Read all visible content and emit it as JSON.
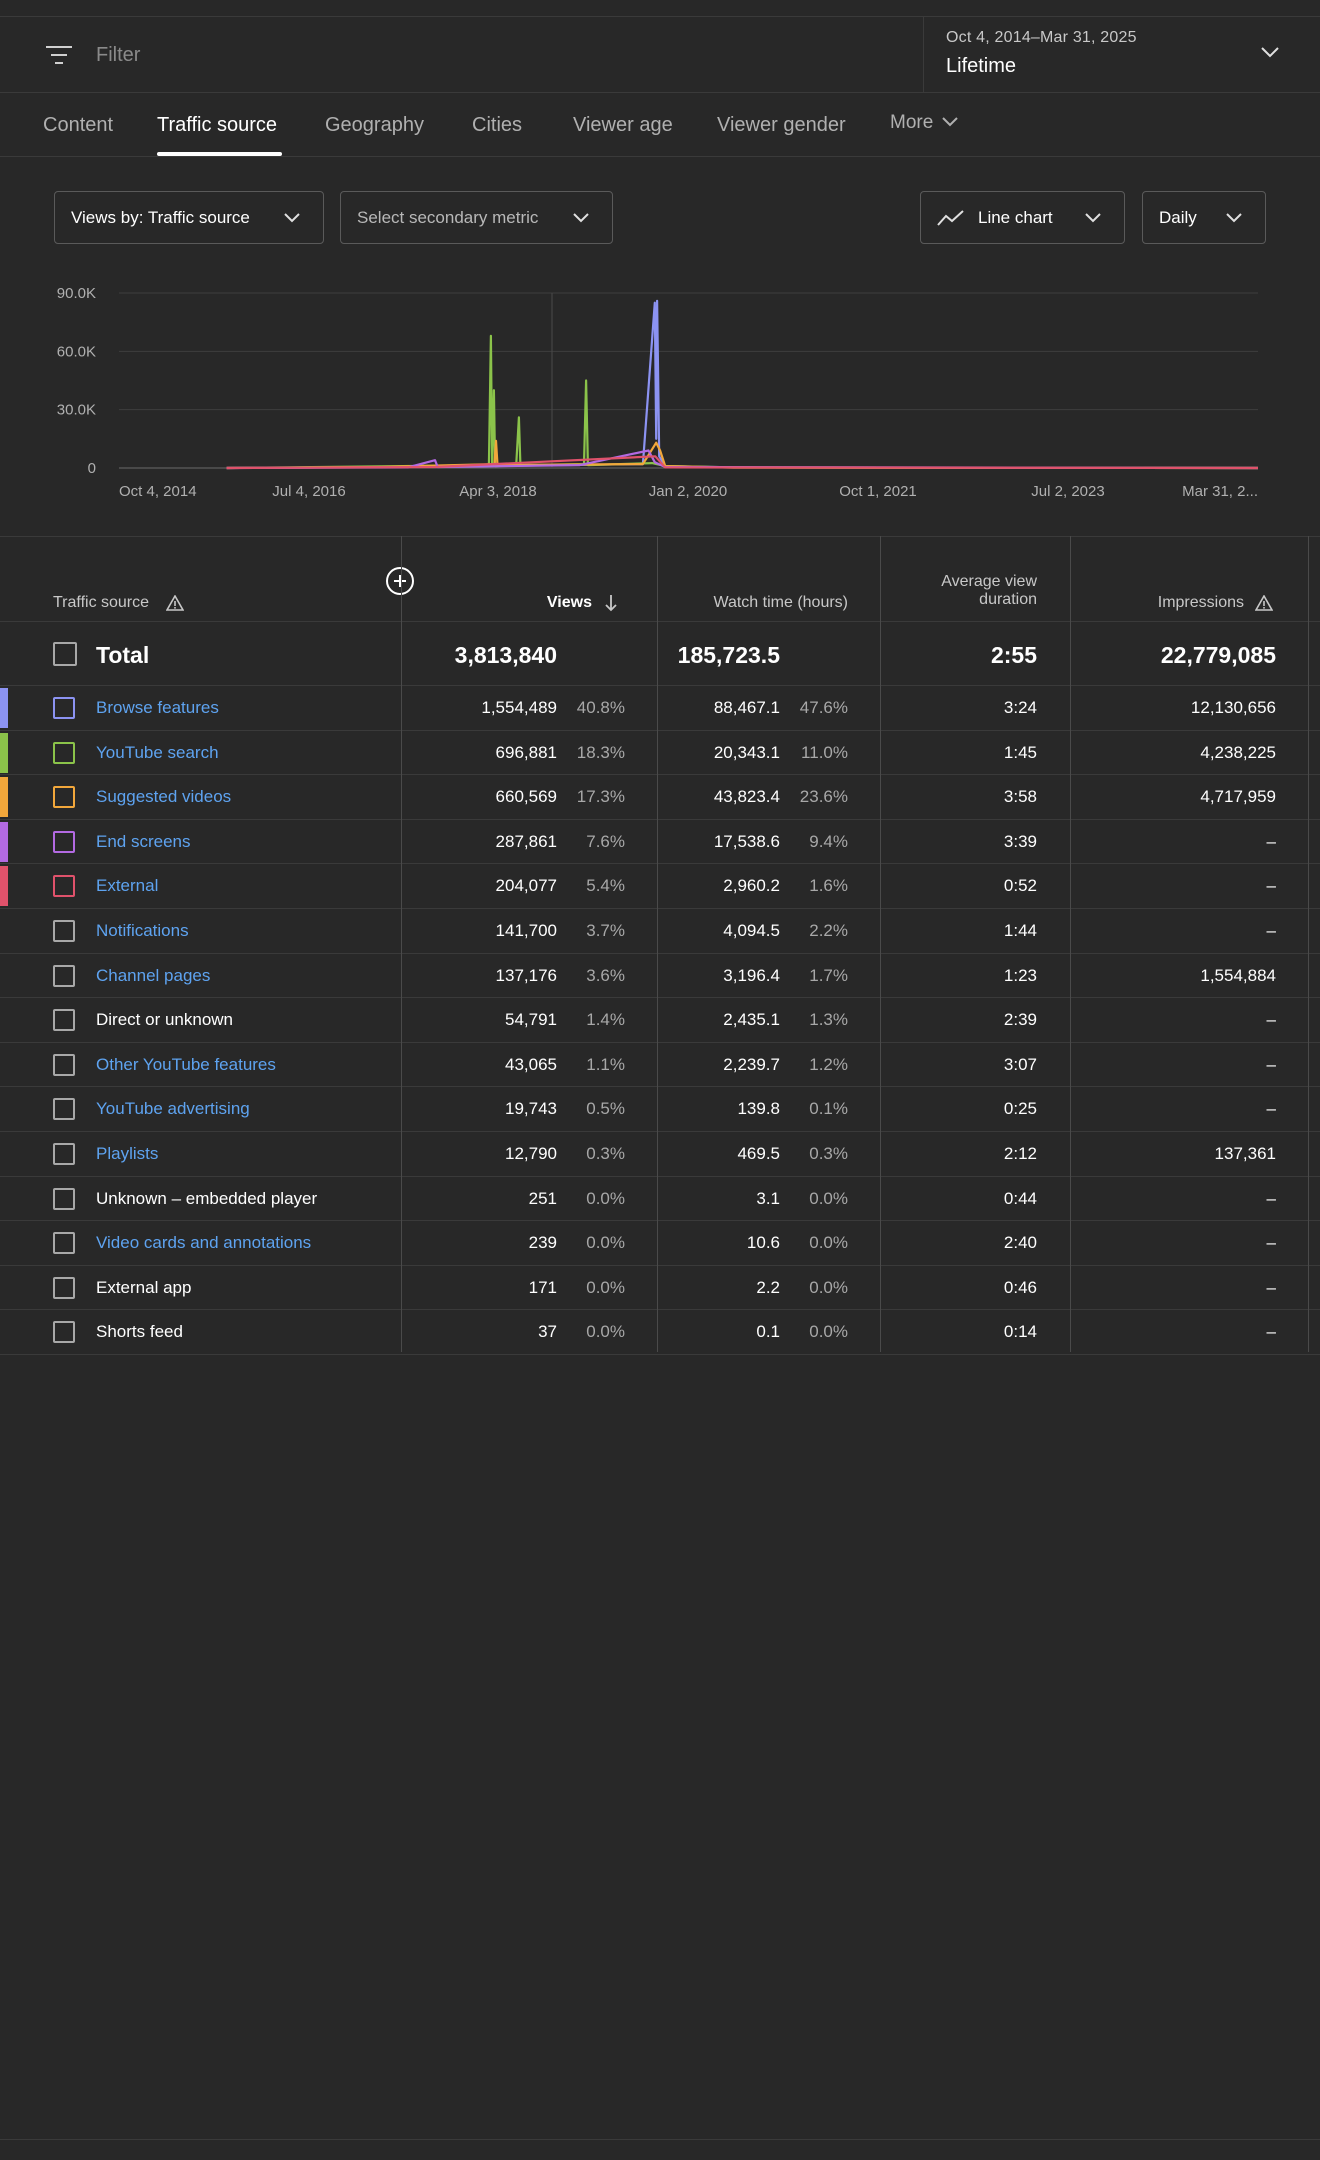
{
  "filter": {
    "placeholder": "Filter"
  },
  "date": {
    "range": "Oct 4, 2014–Mar 31, 2025",
    "label": "Lifetime"
  },
  "tabs": [
    {
      "label": "Content"
    },
    {
      "label": "Traffic source",
      "active": true
    },
    {
      "label": "Geography"
    },
    {
      "label": "Cities"
    },
    {
      "label": "Viewer age"
    },
    {
      "label": "Viewer gender"
    },
    {
      "label": "More"
    }
  ],
  "controls": {
    "metric": "Views by: Traffic source",
    "secondary": "Select secondary metric",
    "chart_type": "Line chart",
    "interval": "Daily"
  },
  "colors": {
    "browse": "#8c93f2",
    "search": "#8bc34a",
    "suggested": "#f2a73b",
    "endscreens": "#b36ae2",
    "external": "#e0526b",
    "link": "#5ea3f0"
  },
  "chart_data": {
    "type": "line",
    "x_tick_labels": [
      "Oct 4, 2014",
      "Jul 4, 2016",
      "Apr 3, 2018",
      "Jan 2, 2020",
      "Oct 1, 2021",
      "Jul 2, 2023",
      "Mar 31, 2..."
    ],
    "y_tick_labels": [
      "90.0K",
      "60.0K",
      "30.0K",
      "0"
    ],
    "ylim": [
      0,
      90000
    ],
    "series": [
      {
        "name": "Browse features",
        "color": "#8c93f2",
        "points": [
          [
            "2015-10-01",
            0
          ],
          [
            "2017-03-01",
            500
          ],
          [
            "2018-06-01",
            1200
          ],
          [
            "2019-08-01",
            2000
          ],
          [
            "2019-09-10",
            85000
          ],
          [
            "2019-09-15",
            15000
          ],
          [
            "2019-09-18",
            86000
          ],
          [
            "2019-09-25",
            6000
          ],
          [
            "2019-10-15",
            1000
          ],
          [
            "2020-06-01",
            300
          ],
          [
            "2025-03-31",
            0
          ]
        ]
      },
      {
        "name": "YouTube search",
        "color": "#8bc34a",
        "points": [
          [
            "2015-10-01",
            0
          ],
          [
            "2017-03-01",
            800
          ],
          [
            "2018-03-01",
            1500
          ],
          [
            "2018-03-08",
            68000
          ],
          [
            "2018-03-12",
            2000
          ],
          [
            "2018-03-18",
            40000
          ],
          [
            "2018-03-22",
            1000
          ],
          [
            "2018-06-01",
            1500
          ],
          [
            "2018-06-10",
            26000
          ],
          [
            "2018-06-15",
            1500
          ],
          [
            "2019-01-15",
            2000
          ],
          [
            "2019-01-22",
            45000
          ],
          [
            "2019-01-28",
            1500
          ],
          [
            "2019-09-01",
            2500
          ],
          [
            "2019-10-15",
            1000
          ],
          [
            "2020-06-01",
            300
          ],
          [
            "2025-03-31",
            0
          ]
        ]
      },
      {
        "name": "Suggested videos",
        "color": "#f2a73b",
        "points": [
          [
            "2015-10-01",
            0
          ],
          [
            "2017-03-01",
            500
          ],
          [
            "2018-03-20",
            2000
          ],
          [
            "2018-03-25",
            14000
          ],
          [
            "2018-03-30",
            1500
          ],
          [
            "2019-08-01",
            2000
          ],
          [
            "2019-09-15",
            13000
          ],
          [
            "2019-09-28",
            9000
          ],
          [
            "2019-10-15",
            1000
          ],
          [
            "2020-06-01",
            200
          ],
          [
            "2025-03-31",
            0
          ]
        ]
      },
      {
        "name": "End screens",
        "color": "#b36ae2",
        "points": [
          [
            "2015-10-01",
            0
          ],
          [
            "2017-06-01",
            300
          ],
          [
            "2017-09-01",
            4000
          ],
          [
            "2017-09-10",
            500
          ],
          [
            "2019-01-01",
            1500
          ],
          [
            "2019-08-20",
            9000
          ],
          [
            "2019-09-10",
            3000
          ],
          [
            "2019-10-15",
            500
          ],
          [
            "2025-03-31",
            0
          ]
        ]
      },
      {
        "name": "External",
        "color": "#e0526b",
        "points": [
          [
            "2015-10-01",
            0
          ],
          [
            "2017-09-01",
            500
          ],
          [
            "2019-09-12",
            6000
          ],
          [
            "2019-10-15",
            300
          ],
          [
            "2025-03-31",
            0
          ]
        ]
      }
    ]
  },
  "table": {
    "headers": {
      "source": "Traffic source",
      "views": "Views",
      "watch_time": "Watch time (hours)",
      "avd_line1": "Average view",
      "avd_line2": "duration",
      "impressions": "Impressions"
    },
    "total": {
      "label": "Total",
      "views": "3,813,840",
      "watch_time": "185,723.5",
      "avd": "2:55",
      "impressions": "22,779,085"
    },
    "rows": [
      {
        "source": "Browse features",
        "link": true,
        "color": "#8c93f2",
        "views": "1,554,489",
        "views_pct": "40.8%",
        "watch_time": "88,467.1",
        "watch_pct": "47.6%",
        "avd": "3:24",
        "impressions": "12,130,656"
      },
      {
        "source": "YouTube search",
        "link": true,
        "color": "#8bc34a",
        "views": "696,881",
        "views_pct": "18.3%",
        "watch_time": "20,343.1",
        "watch_pct": "11.0%",
        "avd": "1:45",
        "impressions": "4,238,225"
      },
      {
        "source": "Suggested videos",
        "link": true,
        "color": "#f2a73b",
        "views": "660,569",
        "views_pct": "17.3%",
        "watch_time": "43,823.4",
        "watch_pct": "23.6%",
        "avd": "3:58",
        "impressions": "4,717,959"
      },
      {
        "source": "End screens",
        "link": true,
        "color": "#b36ae2",
        "views": "287,861",
        "views_pct": "7.6%",
        "watch_time": "17,538.6",
        "watch_pct": "9.4%",
        "avd": "3:39",
        "impressions": "–"
      },
      {
        "source": "External",
        "link": true,
        "color": "#e0526b",
        "views": "204,077",
        "views_pct": "5.4%",
        "watch_time": "2,960.2",
        "watch_pct": "1.6%",
        "avd": "0:52",
        "impressions": "–"
      },
      {
        "source": "Notifications",
        "link": true,
        "color": "",
        "views": "141,700",
        "views_pct": "3.7%",
        "watch_time": "4,094.5",
        "watch_pct": "2.2%",
        "avd": "1:44",
        "impressions": "–"
      },
      {
        "source": "Channel pages",
        "link": true,
        "color": "",
        "views": "137,176",
        "views_pct": "3.6%",
        "watch_time": "3,196.4",
        "watch_pct": "1.7%",
        "avd": "1:23",
        "impressions": "1,554,884"
      },
      {
        "source": "Direct or unknown",
        "link": false,
        "color": "",
        "views": "54,791",
        "views_pct": "1.4%",
        "watch_time": "2,435.1",
        "watch_pct": "1.3%",
        "avd": "2:39",
        "impressions": "–"
      },
      {
        "source": "Other YouTube features",
        "link": true,
        "color": "",
        "views": "43,065",
        "views_pct": "1.1%",
        "watch_time": "2,239.7",
        "watch_pct": "1.2%",
        "avd": "3:07",
        "impressions": "–"
      },
      {
        "source": "YouTube advertising",
        "link": true,
        "color": "",
        "views": "19,743",
        "views_pct": "0.5%",
        "watch_time": "139.8",
        "watch_pct": "0.1%",
        "avd": "0:25",
        "impressions": "–"
      },
      {
        "source": "Playlists",
        "link": true,
        "color": "",
        "views": "12,790",
        "views_pct": "0.3%",
        "watch_time": "469.5",
        "watch_pct": "0.3%",
        "avd": "2:12",
        "impressions": "137,361"
      },
      {
        "source": "Unknown – embedded player",
        "link": false,
        "color": "",
        "views": "251",
        "views_pct": "0.0%",
        "watch_time": "3.1",
        "watch_pct": "0.0%",
        "avd": "0:44",
        "impressions": "–"
      },
      {
        "source": "Video cards and annotations",
        "link": true,
        "color": "",
        "views": "239",
        "views_pct": "0.0%",
        "watch_time": "10.6",
        "watch_pct": "0.0%",
        "avd": "2:40",
        "impressions": "–"
      },
      {
        "source": "External app",
        "link": false,
        "color": "",
        "views": "171",
        "views_pct": "0.0%",
        "watch_time": "2.2",
        "watch_pct": "0.0%",
        "avd": "0:46",
        "impressions": "–"
      },
      {
        "source": "Shorts feed",
        "link": false,
        "color": "",
        "views": "37",
        "views_pct": "0.0%",
        "watch_time": "0.1",
        "watch_pct": "0.0%",
        "avd": "0:14",
        "impressions": "–"
      }
    ]
  }
}
